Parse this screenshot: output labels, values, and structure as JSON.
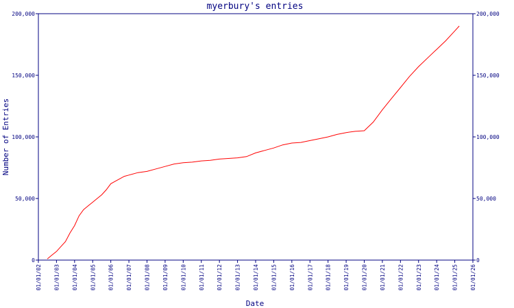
{
  "chart_data": {
    "type": "line",
    "title": "myerbury's entries",
    "xlabel": "Date",
    "ylabel": "Number of Entries",
    "ylim": [
      0,
      200000
    ],
    "y_ticks": [
      0,
      50000,
      100000,
      150000,
      200000
    ],
    "y_tick_labels": [
      "0",
      "50,000",
      "100,000",
      "150,000",
      "200,000"
    ],
    "x_tick_labels": [
      "01/01/02",
      "01/01/03",
      "01/01/04",
      "01/01/05",
      "01/01/06",
      "01/01/07",
      "01/01/08",
      "01/01/09",
      "01/01/10",
      "01/01/11",
      "01/01/12",
      "01/01/13",
      "01/01/14",
      "01/01/15",
      "01/01/16",
      "01/01/17",
      "01/01/18",
      "01/01/19",
      "01/01/20",
      "01/01/21",
      "01/01/22",
      "01/01/23",
      "01/01/24",
      "01/01/25",
      "01/01/26"
    ],
    "xlim": [
      "2002-01-01",
      "2026-01-01"
    ],
    "colors": {
      "axis": "#000080",
      "line": "#ff0000"
    },
    "series": [
      {
        "x": [
          "2002-07-01",
          "2002-10-01",
          "2003-01-01",
          "2003-04-01",
          "2003-07-01",
          "2003-10-01",
          "2004-01-01",
          "2004-04-01",
          "2004-07-01",
          "2004-10-01",
          "2005-01-01",
          "2005-04-01",
          "2005-07-01",
          "2005-10-01",
          "2006-01-01",
          "2006-04-01",
          "2006-07-01",
          "2006-10-01",
          "2007-01-01",
          "2007-07-01",
          "2008-01-01",
          "2008-07-01",
          "2009-01-01",
          "2009-07-01",
          "2010-01-01",
          "2010-07-01",
          "2011-01-01",
          "2011-07-01",
          "2012-01-01",
          "2012-07-01",
          "2013-01-01",
          "2013-07-01",
          "2014-01-01",
          "2014-07-01",
          "2015-01-01",
          "2015-07-01",
          "2016-01-01",
          "2016-07-01",
          "2017-01-01",
          "2017-07-01",
          "2018-01-01",
          "2018-07-01",
          "2019-01-01",
          "2019-07-01",
          "2020-01-01",
          "2020-07-01",
          "2021-01-01",
          "2021-07-01",
          "2022-01-01",
          "2022-07-01",
          "2023-01-01",
          "2023-07-01",
          "2024-01-01",
          "2024-07-01",
          "2025-01-01",
          "2025-04-01"
        ],
        "values": [
          1000,
          4000,
          7000,
          11000,
          15000,
          22000,
          28000,
          36000,
          41000,
          44000,
          47000,
          50000,
          53000,
          57000,
          62000,
          64000,
          66000,
          68000,
          69000,
          71000,
          72000,
          74000,
          76000,
          78000,
          79000,
          79500,
          80500,
          81000,
          82000,
          82500,
          83000,
          84000,
          87000,
          89000,
          91000,
          93500,
          95000,
          95500,
          97000,
          98500,
          100000,
          102000,
          103500,
          104500,
          105000,
          112000,
          122000,
          131000,
          140000,
          149000,
          157000,
          164000,
          171000,
          178000,
          186000,
          190000
        ]
      }
    ]
  }
}
